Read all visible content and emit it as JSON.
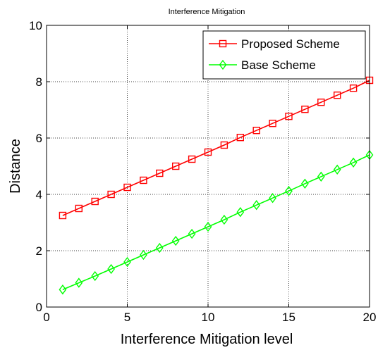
{
  "chart_data": {
    "type": "line",
    "title": "Interference Mitigation",
    "xlabel": "Interference Mitigation level",
    "ylabel": "Distance",
    "xlim": [
      0,
      20
    ],
    "ylim": [
      0,
      10
    ],
    "xticks": [
      0,
      5,
      10,
      15,
      20
    ],
    "yticks": [
      0,
      2,
      4,
      6,
      8,
      10
    ],
    "grid": true,
    "legend_position": "top-right",
    "x": [
      1,
      2,
      3,
      4,
      5,
      6,
      7,
      8,
      9,
      10,
      11,
      12,
      13,
      14,
      15,
      16,
      17,
      18,
      19,
      20
    ],
    "series": [
      {
        "name": "Proposed Scheme",
        "color": "#ff0000",
        "marker": "square",
        "values": [
          3.25,
          3.5,
          3.75,
          4.0,
          4.25,
          4.5,
          4.75,
          5.0,
          5.25,
          5.5,
          5.75,
          6.02,
          6.27,
          6.52,
          6.77,
          7.02,
          7.27,
          7.52,
          7.77,
          8.05
        ]
      },
      {
        "name": "Base Scheme",
        "color": "#00ff00",
        "marker": "diamond",
        "values": [
          0.62,
          0.86,
          1.1,
          1.35,
          1.6,
          1.85,
          2.1,
          2.35,
          2.6,
          2.85,
          3.1,
          3.37,
          3.62,
          3.87,
          4.12,
          4.38,
          4.63,
          4.88,
          5.13,
          5.4
        ]
      }
    ]
  }
}
